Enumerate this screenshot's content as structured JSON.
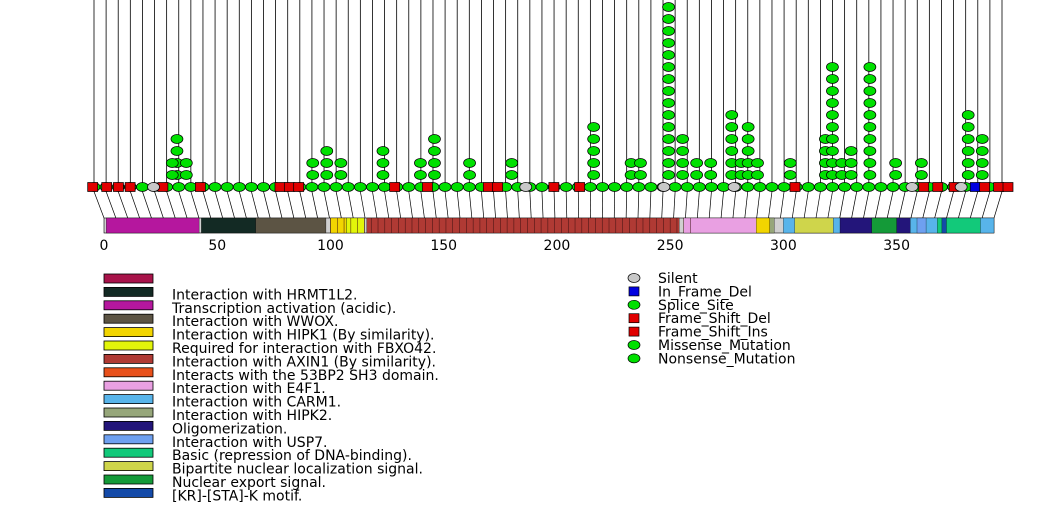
{
  "chart_data": {
    "type": "lollipop",
    "title": "",
    "xlabel": "",
    "ylabel": "",
    "xlim": [
      0,
      393
    ],
    "x_ticks": [
      0,
      50,
      100,
      150,
      200,
      250,
      300,
      350
    ],
    "domains": [
      {
        "name": "Transcription activation (acidic).",
        "start": 1,
        "end": 42,
        "color": "#b5179e"
      },
      {
        "name": "Interaction with HRMT1L2.",
        "start": 43,
        "end": 67,
        "color": "#132a24"
      },
      {
        "name": "Interaction with WWOX.",
        "start": 67,
        "end": 98,
        "color": "#5c5444"
      },
      {
        "name": "Interaction with HIPK1 (By similarity).",
        "start": 100,
        "end": 107,
        "color": "#f2d500"
      },
      {
        "name": "Required for interaction with FBXO42.",
        "start": 107,
        "end": 115,
        "color": "#e2f50a"
      },
      {
        "name": "Interaction with AXIN1 (By similarity).",
        "start": 116,
        "end": 254,
        "color": "#b03a34"
      },
      {
        "name": "Interaction with E4F1.",
        "start": 256,
        "end": 294,
        "color": "#e9a0e2"
      },
      {
        "name": "Interaction with CARM1.",
        "start": 300,
        "end": 393,
        "color": "#58b4ea"
      },
      {
        "name": "Interaction with HIPK2.",
        "start": 294,
        "end": 296,
        "color": "#96a67a"
      },
      {
        "name": "Interaction with HIPK1 (By similarity).",
        "start": 288,
        "end": 294,
        "color": "#f2d500"
      },
      {
        "name": "Bipartite nuclear localization signal.",
        "start": 305,
        "end": 322,
        "color": "#cfd54b"
      },
      {
        "name": "Oligomerization.",
        "start": 325,
        "end": 356,
        "color": "#23157a"
      },
      {
        "name": "Nuclear export signal.",
        "start": 339,
        "end": 350,
        "color": "#149a38"
      },
      {
        "name": "Interaction with USP7.",
        "start": 359,
        "end": 363,
        "color": "#6ea0f0"
      },
      {
        "name": "Basic (repression of DNA-binding).",
        "start": 368,
        "end": 387,
        "color": "#12c97a"
      },
      {
        "name": "[KR]-[STA]-K motif.",
        "start": 370,
        "end": 372,
        "color": "#144aa8"
      }
    ],
    "domain_legend": [
      {
        "label": "",
        "color": "#a8134a"
      },
      {
        "label": "Interaction with HRMT1L2.",
        "color": "#132a24"
      },
      {
        "label": "Transcription activation (acidic).",
        "color": "#b5179e"
      },
      {
        "label": "Interaction with WWOX.",
        "color": "#5c5444"
      },
      {
        "label": "Interaction with HIPK1 (By similarity).",
        "color": "#f2d500"
      },
      {
        "label": "Required for interaction with FBXO42.",
        "color": "#e2f50a"
      },
      {
        "label": "Interaction with AXIN1 (By similarity).",
        "color": "#b03a34"
      },
      {
        "label": "Interacts with the 53BP2 SH3 domain.",
        "color": "#e8501a"
      },
      {
        "label": "Interaction with E4F1.",
        "color": "#e9a0e2"
      },
      {
        "label": "Interaction with CARM1.",
        "color": "#58b4ea"
      },
      {
        "label": "Interaction with HIPK2.",
        "color": "#96a67a"
      },
      {
        "label": "Oligomerization.",
        "color": "#23157a"
      },
      {
        "label": "Interaction with USP7.",
        "color": "#6ea0f0"
      },
      {
        "label": "Basic (repression of DNA-binding).",
        "color": "#12c97a"
      },
      {
        "label": "Bipartite nuclear localization signal.",
        "color": "#cfd54b"
      },
      {
        "label": "Nuclear export signal.",
        "color": "#149a38"
      },
      {
        "label": "[KR]-[STA]-K motif.",
        "color": "#144aa8"
      }
    ],
    "mutation_legend": [
      {
        "label": "Silent",
        "color": "#c8c8c8",
        "shape": "ellipse"
      },
      {
        "label": "In_Frame_Del",
        "color": "#0000e0",
        "shape": "square"
      },
      {
        "label": "Splice_Site",
        "color": "#00e000",
        "shape": "ellipse"
      },
      {
        "label": "Frame_Shift_Del",
        "color": "#e00000",
        "shape": "square"
      },
      {
        "label": "Frame_Shift_Ins",
        "color": "#e00000",
        "shape": "square"
      },
      {
        "label": "Missense_Mutation",
        "color": "#00e000",
        "shape": "ellipse"
      },
      {
        "label": "Nonsense_Mutation",
        "color": "#00e000",
        "shape": "ellipse"
      }
    ],
    "mutations": [
      {
        "pos": 38,
        "count": 4
      },
      {
        "pos": 36,
        "count": 2
      },
      {
        "pos": 42,
        "count": 2
      },
      {
        "pos": 96,
        "count": 2
      },
      {
        "pos": 102,
        "count": 3
      },
      {
        "pos": 108,
        "count": 2
      },
      {
        "pos": 126,
        "count": 3
      },
      {
        "pos": 142,
        "count": 2
      },
      {
        "pos": 148,
        "count": 4
      },
      {
        "pos": 163,
        "count": 2
      },
      {
        "pos": 181,
        "count": 2
      },
      {
        "pos": 216,
        "count": 5
      },
      {
        "pos": 232,
        "count": 2
      },
      {
        "pos": 236,
        "count": 2
      },
      {
        "pos": 248,
        "count": 15
      },
      {
        "pos": 254,
        "count": 4
      },
      {
        "pos": 260,
        "count": 2
      },
      {
        "pos": 266,
        "count": 2
      },
      {
        "pos": 275,
        "count": 6
      },
      {
        "pos": 279,
        "count": 2
      },
      {
        "pos": 282,
        "count": 5
      },
      {
        "pos": 286,
        "count": 2
      },
      {
        "pos": 300,
        "count": 2
      },
      {
        "pos": 315,
        "count": 4
      },
      {
        "pos": 318,
        "count": 10
      },
      {
        "pos": 322,
        "count": 2
      },
      {
        "pos": 326,
        "count": 3
      },
      {
        "pos": 334,
        "count": 10
      },
      {
        "pos": 345,
        "count": 2
      },
      {
        "pos": 356,
        "count": 2
      },
      {
        "pos": 376,
        "count": 6
      },
      {
        "pos": 382,
        "count": 4
      }
    ],
    "backbone_markers": [
      {
        "pos": 2,
        "type": "square",
        "color": "#e00000"
      },
      {
        "pos": 8,
        "type": "square",
        "color": "#e00000"
      },
      {
        "pos": 13,
        "type": "square",
        "color": "#e00000"
      },
      {
        "pos": 18,
        "type": "square",
        "color": "#e00000"
      },
      {
        "pos": 32,
        "type": "square",
        "color": "#e00000"
      },
      {
        "pos": 48,
        "type": "square",
        "color": "#e00000"
      },
      {
        "pos": 82,
        "type": "square",
        "color": "#e00000"
      },
      {
        "pos": 86,
        "type": "square",
        "color": "#e00000"
      },
      {
        "pos": 90,
        "type": "square",
        "color": "#e00000"
      },
      {
        "pos": 131,
        "type": "square",
        "color": "#e00000"
      },
      {
        "pos": 145,
        "type": "square",
        "color": "#e00000"
      },
      {
        "pos": 171,
        "type": "square",
        "color": "#e00000"
      },
      {
        "pos": 175,
        "type": "square",
        "color": "#e00000"
      },
      {
        "pos": 199,
        "type": "square",
        "color": "#e00000"
      },
      {
        "pos": 210,
        "type": "square",
        "color": "#e00000"
      },
      {
        "pos": 302,
        "type": "square",
        "color": "#e00000"
      },
      {
        "pos": 357,
        "type": "square",
        "color": "#e00000"
      },
      {
        "pos": 363,
        "type": "square",
        "color": "#e00000"
      },
      {
        "pos": 370,
        "type": "square",
        "color": "#e00000"
      },
      {
        "pos": 379,
        "type": "square",
        "color": "#0000e0"
      },
      {
        "pos": 383,
        "type": "square",
        "color": "#e00000"
      },
      {
        "pos": 389,
        "type": "square",
        "color": "#e00000"
      },
      {
        "pos": 393,
        "type": "square",
        "color": "#e00000"
      },
      {
        "pos": 28,
        "type": "ellipse",
        "color": "#c8c8c8"
      },
      {
        "pos": 187,
        "type": "ellipse",
        "color": "#c8c8c8"
      },
      {
        "pos": 246,
        "type": "ellipse",
        "color": "#c8c8c8"
      },
      {
        "pos": 276,
        "type": "ellipse",
        "color": "#c8c8c8"
      },
      {
        "pos": 352,
        "type": "ellipse",
        "color": "#c8c8c8"
      },
      {
        "pos": 373,
        "type": "ellipse",
        "color": "#c8c8c8"
      }
    ]
  }
}
